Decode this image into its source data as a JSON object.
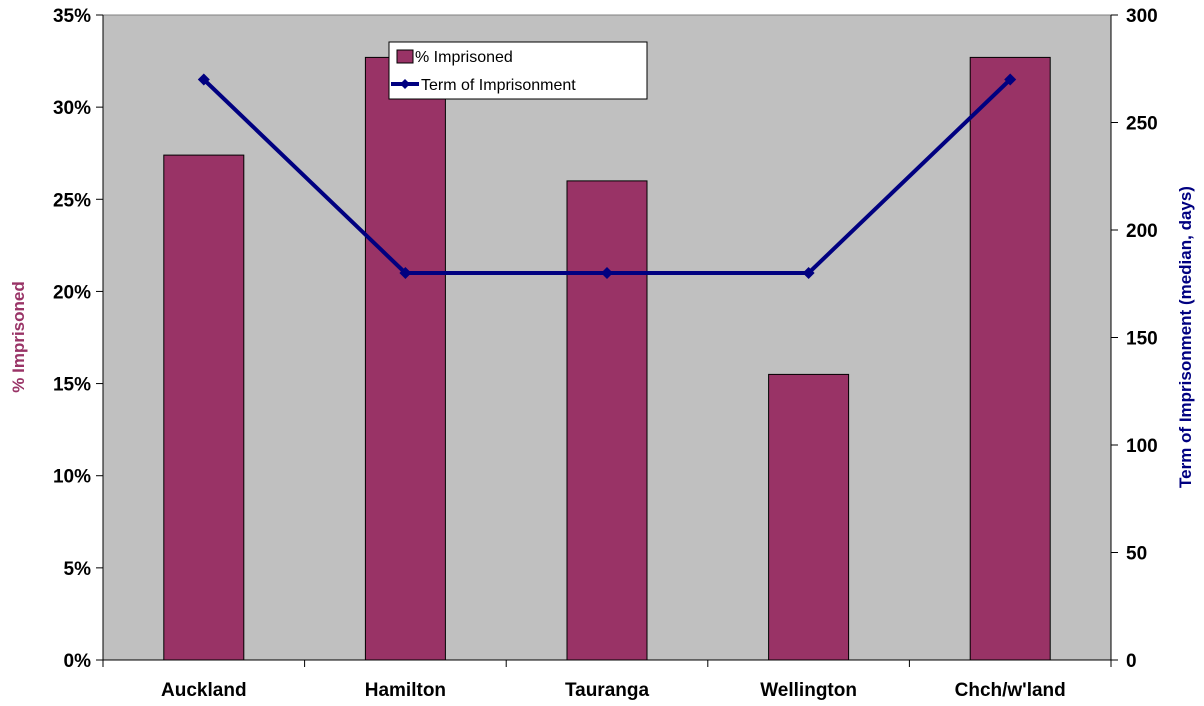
{
  "chart_data": {
    "type": "bar",
    "categories": [
      "Auckland",
      "Hamilton",
      "Tauranga",
      "Wellington",
      "Chch/w'land"
    ],
    "series": [
      {
        "name": "% Imprisoned",
        "type": "bar",
        "axis": "left",
        "values": [
          27.4,
          32.7,
          26.0,
          15.5,
          32.7
        ]
      },
      {
        "name": "Term of Imprisonment",
        "type": "line",
        "axis": "right",
        "marker": "diamond",
        "values": [
          270,
          180,
          180,
          180,
          270
        ]
      }
    ],
    "ylabel": "% Imprisoned",
    "y2label": "Term of Imprisonment (median, days)",
    "ylim": [
      0,
      35
    ],
    "y2lim": [
      0,
      300
    ],
    "yticks": [
      "0%",
      "5%",
      "10%",
      "15%",
      "20%",
      "25%",
      "30%",
      "35%"
    ],
    "y2ticks": [
      "0",
      "50",
      "100",
      "150",
      "200",
      "250",
      "300"
    ],
    "legend_position": "top-center",
    "grid": false
  },
  "colors": {
    "bar_fill": "#993366",
    "line": "#000080",
    "plot_background": "#c0c0c0",
    "left_title": "#993366",
    "right_title": "#000080"
  }
}
